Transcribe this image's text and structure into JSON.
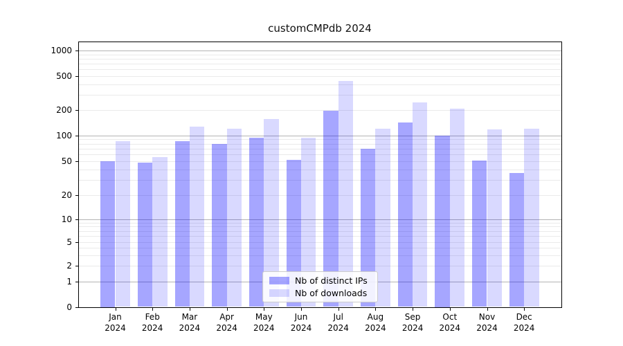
{
  "title": "customCMPdb 2024",
  "chart_data": {
    "type": "bar",
    "title": "customCMPdb 2024",
    "months": [
      "Jan",
      "Feb",
      "Mar",
      "Apr",
      "May",
      "Jun",
      "Jul",
      "Aug",
      "Sep",
      "Oct",
      "Nov",
      "Dec"
    ],
    "year": "2024",
    "series": [
      {
        "name": "Nb of distinct IPs",
        "color": "rgba(0,0,255,0.35)",
        "color_hex": "#a6a6ff",
        "values": [
          50,
          48,
          85,
          79,
          93,
          52,
          196,
          70,
          142,
          100,
          51,
          36
        ]
      },
      {
        "name": "Nb of downloads",
        "color": "rgba(0,0,255,0.15)",
        "color_hex": "#d9d9ff",
        "values": [
          85,
          56,
          128,
          120,
          156,
          93,
          436,
          120,
          245,
          209,
          118,
          119
        ]
      }
    ],
    "y_scale": "symlog",
    "y_ticks": [
      0,
      1,
      2,
      5,
      10,
      20,
      50,
      100,
      200,
      500,
      1000
    ],
    "y_major_gridlines": [
      1,
      10,
      100,
      1000
    ],
    "y_range": [
      0,
      1300
    ],
    "xlabel": "",
    "ylabel": "",
    "grid": true,
    "legend_position": "lower center",
    "colors": {
      "grid_major": "#b3b3b3",
      "grid_minor": "#eaeaea",
      "spine": "#000000",
      "text": "#000000",
      "legend_border": "#cccccc"
    }
  }
}
